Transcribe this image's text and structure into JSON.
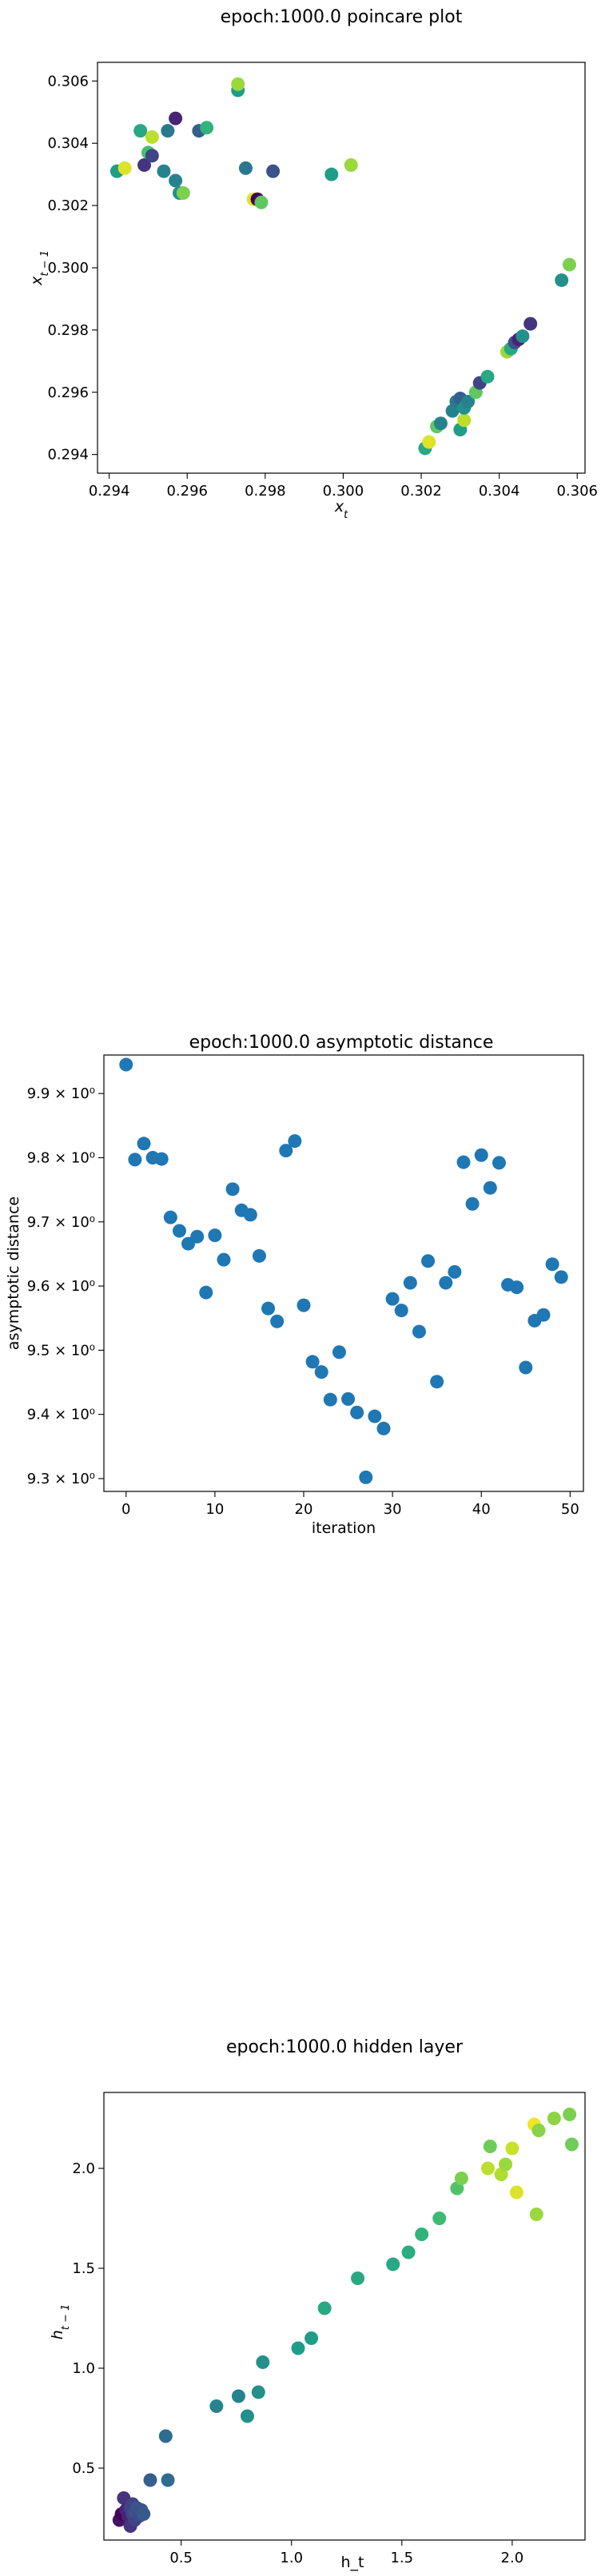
{
  "chart_data": [
    {
      "type": "scatter",
      "title": "epoch:1000.0 poincare plot",
      "xlabel": "x_t",
      "ylabel": "x_{t-1}",
      "xlim": [
        0.2937,
        0.3062
      ],
      "ylim": [
        0.2934,
        0.3066
      ],
      "xticks": [
        0.294,
        0.296,
        0.298,
        0.3,
        0.302,
        0.304,
        0.306
      ],
      "xtick_labels": [
        "0.294",
        "0.296",
        "0.298",
        "0.300",
        "0.302",
        "0.304",
        "0.306"
      ],
      "yticks": [
        0.294,
        0.296,
        0.298,
        0.3,
        0.302,
        0.304,
        0.306
      ],
      "ytick_labels": [
        "0.294",
        "0.296",
        "0.298",
        "0.300",
        "0.302",
        "0.304",
        "0.306"
      ],
      "colormap": "viridis",
      "points": [
        {
          "x": 0.2942,
          "y": 0.3031,
          "c": 0.55
        },
        {
          "x": 0.2944,
          "y": 0.3032,
          "c": 0.95
        },
        {
          "x": 0.2948,
          "y": 0.3044,
          "c": 0.6
        },
        {
          "x": 0.2949,
          "y": 0.3033,
          "c": 0.15
        },
        {
          "x": 0.295,
          "y": 0.3037,
          "c": 0.7
        },
        {
          "x": 0.2951,
          "y": 0.3036,
          "c": 0.2
        },
        {
          "x": 0.2951,
          "y": 0.3042,
          "c": 0.9
        },
        {
          "x": 0.2954,
          "y": 0.3031,
          "c": 0.45
        },
        {
          "x": 0.2955,
          "y": 0.3044,
          "c": 0.4
        },
        {
          "x": 0.2957,
          "y": 0.3048,
          "c": 0.1
        },
        {
          "x": 0.2957,
          "y": 0.3028,
          "c": 0.45
        },
        {
          "x": 0.2958,
          "y": 0.3024,
          "c": 0.5
        },
        {
          "x": 0.2959,
          "y": 0.3024,
          "c": 0.8
        },
        {
          "x": 0.2963,
          "y": 0.3044,
          "c": 0.3
        },
        {
          "x": 0.2965,
          "y": 0.3045,
          "c": 0.65
        },
        {
          "x": 0.2973,
          "y": 0.3057,
          "c": 0.55
        },
        {
          "x": 0.2973,
          "y": 0.3059,
          "c": 0.85
        },
        {
          "x": 0.2975,
          "y": 0.3032,
          "c": 0.4
        },
        {
          "x": 0.2977,
          "y": 0.3022,
          "c": 0.95
        },
        {
          "x": 0.2978,
          "y": 0.3022,
          "c": 0.0
        },
        {
          "x": 0.2979,
          "y": 0.3021,
          "c": 0.75
        },
        {
          "x": 0.2982,
          "y": 0.3031,
          "c": 0.25
        },
        {
          "x": 0.2997,
          "y": 0.303,
          "c": 0.55
        },
        {
          "x": 0.3002,
          "y": 0.3033,
          "c": 0.85
        },
        {
          "x": 0.3021,
          "y": 0.2942,
          "c": 0.6
        },
        {
          "x": 0.3022,
          "y": 0.2944,
          "c": 0.95
        },
        {
          "x": 0.3024,
          "y": 0.2949,
          "c": 0.75
        },
        {
          "x": 0.3025,
          "y": 0.295,
          "c": 0.45
        },
        {
          "x": 0.3028,
          "y": 0.2954,
          "c": 0.45
        },
        {
          "x": 0.3029,
          "y": 0.2957,
          "c": 0.4
        },
        {
          "x": 0.303,
          "y": 0.2958,
          "c": 0.3
        },
        {
          "x": 0.303,
          "y": 0.2948,
          "c": 0.55
        },
        {
          "x": 0.3031,
          "y": 0.2951,
          "c": 0.9
        },
        {
          "x": 0.3031,
          "y": 0.2955,
          "c": 0.5
        },
        {
          "x": 0.3032,
          "y": 0.2957,
          "c": 0.45
        },
        {
          "x": 0.3034,
          "y": 0.296,
          "c": 0.75
        },
        {
          "x": 0.3035,
          "y": 0.2963,
          "c": 0.2
        },
        {
          "x": 0.3037,
          "y": 0.2965,
          "c": 0.6
        },
        {
          "x": 0.3042,
          "y": 0.2973,
          "c": 0.85
        },
        {
          "x": 0.3043,
          "y": 0.2974,
          "c": 0.6
        },
        {
          "x": 0.3044,
          "y": 0.2976,
          "c": 0.25
        },
        {
          "x": 0.3045,
          "y": 0.2977,
          "c": 0.1
        },
        {
          "x": 0.3046,
          "y": 0.2978,
          "c": 0.5
        },
        {
          "x": 0.3048,
          "y": 0.2982,
          "c": 0.15
        },
        {
          "x": 0.3056,
          "y": 0.2996,
          "c": 0.5
        },
        {
          "x": 0.3058,
          "y": 0.3001,
          "c": 0.8
        }
      ]
    },
    {
      "type": "scatter",
      "title": "epoch:1000.0 asymptotic distance",
      "xlabel": "iteration",
      "ylabel": "asymptotic distance",
      "xlim": [
        -2.5,
        51.5
      ],
      "ylim": [
        9.28,
        9.96
      ],
      "xticks": [
        0,
        10,
        20,
        30,
        40,
        50
      ],
      "xtick_labels": [
        "0",
        "10",
        "20",
        "30",
        "40",
        "50"
      ],
      "yticks": [
        9.3,
        9.4,
        9.5,
        9.6,
        9.7,
        9.8,
        9.9
      ],
      "ytick_labels": [
        "9.3 × 10⁰",
        "9.4 × 10⁰",
        "9.5 × 10⁰",
        "9.6 × 10⁰",
        "9.7 × 10⁰",
        "9.8 × 10⁰",
        "9.9 × 10⁰"
      ],
      "color": "#1f77b4",
      "x": [
        0,
        1,
        2,
        3,
        4,
        5,
        6,
        7,
        8,
        9,
        10,
        11,
        12,
        13,
        14,
        15,
        16,
        17,
        18,
        19,
        20,
        21,
        22,
        23,
        24,
        25,
        26,
        27,
        28,
        29,
        30,
        31,
        32,
        33,
        34,
        35,
        36,
        37,
        38,
        39,
        40,
        41,
        42,
        43,
        44,
        45,
        46,
        47,
        48,
        49
      ],
      "y": [
        9.945,
        9.797,
        9.822,
        9.8,
        9.798,
        9.707,
        9.686,
        9.666,
        9.677,
        9.59,
        9.679,
        9.641,
        9.751,
        9.718,
        9.711,
        9.647,
        9.565,
        9.545,
        9.811,
        9.826,
        9.57,
        9.482,
        9.466,
        9.423,
        9.497,
        9.424,
        9.403,
        9.302,
        9.397,
        9.378,
        9.58,
        9.562,
        9.605,
        9.529,
        9.639,
        9.451,
        9.605,
        9.622,
        9.793,
        9.728,
        9.804,
        9.753,
        9.792,
        9.602,
        9.598,
        9.473,
        9.546,
        9.555,
        9.634,
        9.614
      ]
    },
    {
      "type": "scatter",
      "title": "epoch:1000.0 hidden layer",
      "xlabel": "h_t",
      "ylabel": "h_{t-1}",
      "xlim": [
        0.15,
        2.33
      ],
      "ylim": [
        0.14,
        2.38
      ],
      "xticks": [
        0.5,
        1.0,
        1.5,
        2.0
      ],
      "xtick_labels": [
        "0.5",
        "1.0",
        "1.5",
        "2.0"
      ],
      "yticks": [
        0.5,
        1.0,
        1.5,
        2.0
      ],
      "ytick_labels": [
        "0.5",
        "1.0",
        "1.5",
        "2.0"
      ],
      "colormap": "viridis",
      "points": [
        {
          "x": 0.22,
          "y": 0.24,
          "c": 0.05
        },
        {
          "x": 0.23,
          "y": 0.27,
          "c": 0.0
        },
        {
          "x": 0.24,
          "y": 0.35,
          "c": 0.15
        },
        {
          "x": 0.25,
          "y": 0.29,
          "c": 0.1
        },
        {
          "x": 0.26,
          "y": 0.26,
          "c": 0.1
        },
        {
          "x": 0.27,
          "y": 0.3,
          "c": 0.2
        },
        {
          "x": 0.27,
          "y": 0.21,
          "c": 0.15
        },
        {
          "x": 0.28,
          "y": 0.27,
          "c": 0.2
        },
        {
          "x": 0.28,
          "y": 0.32,
          "c": 0.2
        },
        {
          "x": 0.29,
          "y": 0.24,
          "c": 0.2
        },
        {
          "x": 0.29,
          "y": 0.28,
          "c": 0.25
        },
        {
          "x": 0.3,
          "y": 0.3,
          "c": 0.25
        },
        {
          "x": 0.31,
          "y": 0.26,
          "c": 0.22
        },
        {
          "x": 0.32,
          "y": 0.29,
          "c": 0.25
        },
        {
          "x": 0.33,
          "y": 0.27,
          "c": 0.28
        },
        {
          "x": 0.36,
          "y": 0.44,
          "c": 0.3
        },
        {
          "x": 0.43,
          "y": 0.66,
          "c": 0.35
        },
        {
          "x": 0.44,
          "y": 0.44,
          "c": 0.35
        },
        {
          "x": 0.66,
          "y": 0.81,
          "c": 0.45
        },
        {
          "x": 0.76,
          "y": 0.86,
          "c": 0.45
        },
        {
          "x": 0.8,
          "y": 0.76,
          "c": 0.5
        },
        {
          "x": 0.85,
          "y": 0.88,
          "c": 0.5
        },
        {
          "x": 0.87,
          "y": 1.03,
          "c": 0.5
        },
        {
          "x": 1.03,
          "y": 1.1,
          "c": 0.55
        },
        {
          "x": 1.09,
          "y": 1.15,
          "c": 0.55
        },
        {
          "x": 1.15,
          "y": 1.3,
          "c": 0.6
        },
        {
          "x": 1.3,
          "y": 1.45,
          "c": 0.6
        },
        {
          "x": 1.46,
          "y": 1.52,
          "c": 0.6
        },
        {
          "x": 1.53,
          "y": 1.58,
          "c": 0.62
        },
        {
          "x": 1.59,
          "y": 1.67,
          "c": 0.65
        },
        {
          "x": 1.67,
          "y": 1.75,
          "c": 0.68
        },
        {
          "x": 1.75,
          "y": 1.9,
          "c": 0.72
        },
        {
          "x": 1.77,
          "y": 1.95,
          "c": 0.8
        },
        {
          "x": 1.89,
          "y": 2.0,
          "c": 0.9
        },
        {
          "x": 1.9,
          "y": 2.11,
          "c": 0.78
        },
        {
          "x": 1.95,
          "y": 1.97,
          "c": 0.88
        },
        {
          "x": 1.97,
          "y": 2.02,
          "c": 0.85
        },
        {
          "x": 2.0,
          "y": 2.1,
          "c": 0.92
        },
        {
          "x": 2.02,
          "y": 1.88,
          "c": 0.95
        },
        {
          "x": 2.1,
          "y": 2.22,
          "c": 0.98
        },
        {
          "x": 2.11,
          "y": 1.77,
          "c": 0.85
        },
        {
          "x": 2.12,
          "y": 2.19,
          "c": 0.82
        },
        {
          "x": 2.19,
          "y": 2.25,
          "c": 0.83
        },
        {
          "x": 2.26,
          "y": 2.27,
          "c": 0.8
        },
        {
          "x": 2.27,
          "y": 2.12,
          "c": 0.78
        }
      ]
    }
  ]
}
